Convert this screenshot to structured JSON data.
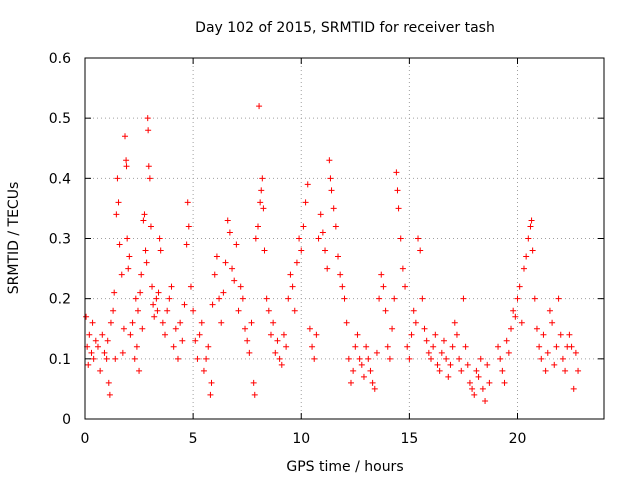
{
  "chart_data": {
    "type": "scatter",
    "title": "Day 102 of 2015, SRMTID for receiver tash",
    "xlabel": "GPS time / hours",
    "ylabel": "SRMTID / TECUs",
    "xlim": [
      0,
      24
    ],
    "ylim": [
      0,
      0.6
    ],
    "x_ticks": [
      {
        "value": 0,
        "label": "0"
      },
      {
        "value": 5,
        "label": "5"
      },
      {
        "value": 10,
        "label": "10"
      },
      {
        "value": 15,
        "label": "15"
      },
      {
        "value": 20,
        "label": "20"
      }
    ],
    "y_ticks": [
      {
        "value": 0,
        "label": "0"
      },
      {
        "value": 0.1,
        "label": "0.1"
      },
      {
        "value": 0.2,
        "label": "0.2"
      },
      {
        "value": 0.3,
        "label": "0.3"
      },
      {
        "value": 0.4,
        "label": "0.4"
      },
      {
        "value": 0.5,
        "label": "0.5"
      },
      {
        "value": 0.6,
        "label": "0.6"
      }
    ],
    "grid": true,
    "marker": "plus",
    "color": "#ff0000",
    "series": [
      {
        "name": "SRMTID",
        "points": [
          [
            0.05,
            0.17
          ],
          [
            0.1,
            0.12
          ],
          [
            0.15,
            0.09
          ],
          [
            0.2,
            0.14
          ],
          [
            0.3,
            0.11
          ],
          [
            0.35,
            0.16
          ],
          [
            0.4,
            0.1
          ],
          [
            0.5,
            0.13
          ],
          [
            0.6,
            0.12
          ],
          [
            0.7,
            0.08
          ],
          [
            0.8,
            0.14
          ],
          [
            0.9,
            0.11
          ],
          [
            1.0,
            0.1
          ],
          [
            1.05,
            0.13
          ],
          [
            1.1,
            0.06
          ],
          [
            1.15,
            0.04
          ],
          [
            1.2,
            0.16
          ],
          [
            1.3,
            0.18
          ],
          [
            1.35,
            0.21
          ],
          [
            1.4,
            0.1
          ],
          [
            1.45,
            0.34
          ],
          [
            1.5,
            0.4
          ],
          [
            1.55,
            0.36
          ],
          [
            1.6,
            0.29
          ],
          [
            1.7,
            0.24
          ],
          [
            1.75,
            0.11
          ],
          [
            1.8,
            0.15
          ],
          [
            1.85,
            0.47
          ],
          [
            1.9,
            0.43
          ],
          [
            1.92,
            0.42
          ],
          [
            1.95,
            0.3
          ],
          [
            2.0,
            0.25
          ],
          [
            2.05,
            0.27
          ],
          [
            2.1,
            0.14
          ],
          [
            2.2,
            0.16
          ],
          [
            2.3,
            0.1
          ],
          [
            2.35,
            0.2
          ],
          [
            2.4,
            0.12
          ],
          [
            2.45,
            0.18
          ],
          [
            2.5,
            0.08
          ],
          [
            2.55,
            0.21
          ],
          [
            2.6,
            0.24
          ],
          [
            2.65,
            0.15
          ],
          [
            2.7,
            0.33
          ],
          [
            2.75,
            0.34
          ],
          [
            2.8,
            0.28
          ],
          [
            2.85,
            0.26
          ],
          [
            2.9,
            0.5
          ],
          [
            2.92,
            0.48
          ],
          [
            2.95,
            0.42
          ],
          [
            3.0,
            0.4
          ],
          [
            3.05,
            0.32
          ],
          [
            3.1,
            0.22
          ],
          [
            3.15,
            0.19
          ],
          [
            3.2,
            0.17
          ],
          [
            3.3,
            0.2
          ],
          [
            3.35,
            0.18
          ],
          [
            3.4,
            0.21
          ],
          [
            3.45,
            0.3
          ],
          [
            3.5,
            0.28
          ],
          [
            3.6,
            0.16
          ],
          [
            3.7,
            0.14
          ],
          [
            3.8,
            0.18
          ],
          [
            3.9,
            0.2
          ],
          [
            4.0,
            0.22
          ],
          [
            4.1,
            0.12
          ],
          [
            4.2,
            0.15
          ],
          [
            4.3,
            0.1
          ],
          [
            4.4,
            0.16
          ],
          [
            4.5,
            0.13
          ],
          [
            4.6,
            0.19
          ],
          [
            4.7,
            0.29
          ],
          [
            4.75,
            0.36
          ],
          [
            4.8,
            0.32
          ],
          [
            4.9,
            0.22
          ],
          [
            5.0,
            0.18
          ],
          [
            5.1,
            0.13
          ],
          [
            5.2,
            0.1
          ],
          [
            5.3,
            0.14
          ],
          [
            5.4,
            0.16
          ],
          [
            5.5,
            0.08
          ],
          [
            5.6,
            0.1
          ],
          [
            5.7,
            0.12
          ],
          [
            5.8,
            0.04
          ],
          [
            5.85,
            0.06
          ],
          [
            5.9,
            0.19
          ],
          [
            6.0,
            0.24
          ],
          [
            6.1,
            0.27
          ],
          [
            6.2,
            0.2
          ],
          [
            6.3,
            0.16
          ],
          [
            6.4,
            0.21
          ],
          [
            6.5,
            0.26
          ],
          [
            6.6,
            0.33
          ],
          [
            6.7,
            0.31
          ],
          [
            6.8,
            0.25
          ],
          [
            6.9,
            0.23
          ],
          [
            7.0,
            0.29
          ],
          [
            7.1,
            0.18
          ],
          [
            7.2,
            0.22
          ],
          [
            7.3,
            0.2
          ],
          [
            7.4,
            0.15
          ],
          [
            7.5,
            0.13
          ],
          [
            7.6,
            0.11
          ],
          [
            7.7,
            0.16
          ],
          [
            7.8,
            0.06
          ],
          [
            7.85,
            0.04
          ],
          [
            7.9,
            0.3
          ],
          [
            8.0,
            0.32
          ],
          [
            8.05,
            0.52
          ],
          [
            8.1,
            0.36
          ],
          [
            8.15,
            0.38
          ],
          [
            8.2,
            0.4
          ],
          [
            8.25,
            0.35
          ],
          [
            8.3,
            0.28
          ],
          [
            8.4,
            0.2
          ],
          [
            8.5,
            0.18
          ],
          [
            8.6,
            0.14
          ],
          [
            8.7,
            0.16
          ],
          [
            8.8,
            0.11
          ],
          [
            8.9,
            0.13
          ],
          [
            9.0,
            0.1
          ],
          [
            9.1,
            0.09
          ],
          [
            9.2,
            0.14
          ],
          [
            9.3,
            0.12
          ],
          [
            9.4,
            0.2
          ],
          [
            9.5,
            0.24
          ],
          [
            9.6,
            0.22
          ],
          [
            9.7,
            0.18
          ],
          [
            9.8,
            0.26
          ],
          [
            9.9,
            0.3
          ],
          [
            10.0,
            0.28
          ],
          [
            10.1,
            0.32
          ],
          [
            10.2,
            0.36
          ],
          [
            10.3,
            0.39
          ],
          [
            10.4,
            0.15
          ],
          [
            10.5,
            0.12
          ],
          [
            10.6,
            0.1
          ],
          [
            10.7,
            0.14
          ],
          [
            10.8,
            0.3
          ],
          [
            10.9,
            0.34
          ],
          [
            11.0,
            0.31
          ],
          [
            11.1,
            0.28
          ],
          [
            11.2,
            0.25
          ],
          [
            11.3,
            0.43
          ],
          [
            11.35,
            0.4
          ],
          [
            11.4,
            0.38
          ],
          [
            11.5,
            0.35
          ],
          [
            11.6,
            0.32
          ],
          [
            11.7,
            0.27
          ],
          [
            11.8,
            0.24
          ],
          [
            11.9,
            0.22
          ],
          [
            12.0,
            0.2
          ],
          [
            12.1,
            0.16
          ],
          [
            12.2,
            0.1
          ],
          [
            12.3,
            0.06
          ],
          [
            12.4,
            0.08
          ],
          [
            12.5,
            0.12
          ],
          [
            12.6,
            0.14
          ],
          [
            12.7,
            0.1
          ],
          [
            12.8,
            0.09
          ],
          [
            12.9,
            0.07
          ],
          [
            13.0,
            0.12
          ],
          [
            13.1,
            0.1
          ],
          [
            13.2,
            0.08
          ],
          [
            13.3,
            0.06
          ],
          [
            13.4,
            0.05
          ],
          [
            13.5,
            0.11
          ],
          [
            13.6,
            0.2
          ],
          [
            13.7,
            0.24
          ],
          [
            13.8,
            0.22
          ],
          [
            13.9,
            0.18
          ],
          [
            14.0,
            0.12
          ],
          [
            14.1,
            0.1
          ],
          [
            14.2,
            0.15
          ],
          [
            14.3,
            0.2
          ],
          [
            14.4,
            0.41
          ],
          [
            14.45,
            0.38
          ],
          [
            14.5,
            0.35
          ],
          [
            14.6,
            0.3
          ],
          [
            14.7,
            0.25
          ],
          [
            14.8,
            0.22
          ],
          [
            14.9,
            0.12
          ],
          [
            15.0,
            0.1
          ],
          [
            15.1,
            0.14
          ],
          [
            15.2,
            0.18
          ],
          [
            15.3,
            0.16
          ],
          [
            15.4,
            0.3
          ],
          [
            15.5,
            0.28
          ],
          [
            15.6,
            0.2
          ],
          [
            15.7,
            0.15
          ],
          [
            15.8,
            0.13
          ],
          [
            15.9,
            0.11
          ],
          [
            16.0,
            0.1
          ],
          [
            16.1,
            0.12
          ],
          [
            16.2,
            0.14
          ],
          [
            16.3,
            0.09
          ],
          [
            16.4,
            0.08
          ],
          [
            16.5,
            0.11
          ],
          [
            16.6,
            0.13
          ],
          [
            16.7,
            0.1
          ],
          [
            16.8,
            0.07
          ],
          [
            16.9,
            0.09
          ],
          [
            17.0,
            0.12
          ],
          [
            17.1,
            0.16
          ],
          [
            17.2,
            0.14
          ],
          [
            17.3,
            0.1
          ],
          [
            17.4,
            0.08
          ],
          [
            17.5,
            0.2
          ],
          [
            17.6,
            0.12
          ],
          [
            17.7,
            0.09
          ],
          [
            17.8,
            0.06
          ],
          [
            17.9,
            0.05
          ],
          [
            18.0,
            0.04
          ],
          [
            18.1,
            0.08
          ],
          [
            18.2,
            0.07
          ],
          [
            18.3,
            0.1
          ],
          [
            18.4,
            0.05
          ],
          [
            18.5,
            0.03
          ],
          [
            18.6,
            0.09
          ],
          [
            18.7,
            0.06
          ],
          [
            19.1,
            0.12
          ],
          [
            19.2,
            0.1
          ],
          [
            19.3,
            0.08
          ],
          [
            19.4,
            0.06
          ],
          [
            19.5,
            0.13
          ],
          [
            19.6,
            0.11
          ],
          [
            19.7,
            0.15
          ],
          [
            19.8,
            0.18
          ],
          [
            19.9,
            0.17
          ],
          [
            20.0,
            0.2
          ],
          [
            20.1,
            0.22
          ],
          [
            20.2,
            0.16
          ],
          [
            20.3,
            0.25
          ],
          [
            20.4,
            0.27
          ],
          [
            20.5,
            0.3
          ],
          [
            20.6,
            0.32
          ],
          [
            20.65,
            0.33
          ],
          [
            20.7,
            0.28
          ],
          [
            20.8,
            0.2
          ],
          [
            20.9,
            0.15
          ],
          [
            21.0,
            0.12
          ],
          [
            21.1,
            0.1
          ],
          [
            21.2,
            0.14
          ],
          [
            21.3,
            0.08
          ],
          [
            21.4,
            0.11
          ],
          [
            21.5,
            0.18
          ],
          [
            21.6,
            0.16
          ],
          [
            21.7,
            0.09
          ],
          [
            21.8,
            0.12
          ],
          [
            21.9,
            0.2
          ],
          [
            22.0,
            0.14
          ],
          [
            22.1,
            0.1
          ],
          [
            22.2,
            0.08
          ],
          [
            22.3,
            0.12
          ],
          [
            22.4,
            0.14
          ],
          [
            22.5,
            0.12
          ],
          [
            22.6,
            0.05
          ],
          [
            22.7,
            0.11
          ],
          [
            22.8,
            0.08
          ]
        ]
      }
    ]
  }
}
